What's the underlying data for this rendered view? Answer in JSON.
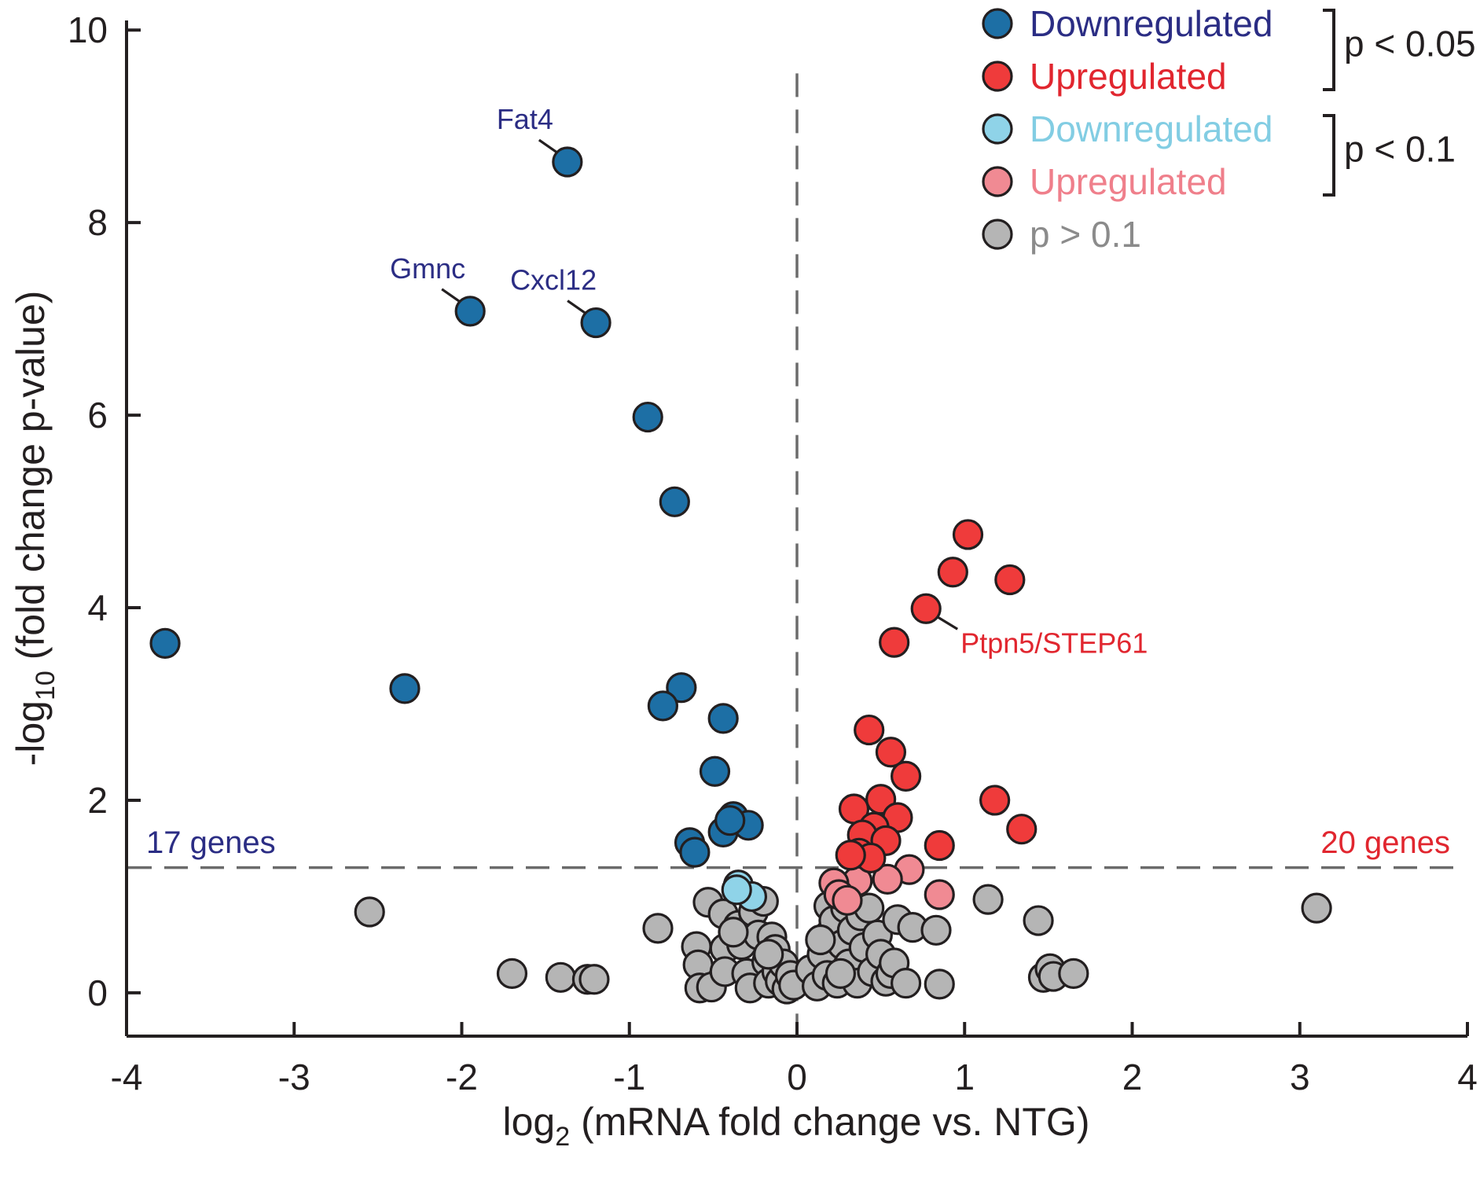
{
  "chart_data": {
    "type": "scatter",
    "title": "",
    "xlabel": {
      "prefix": "log",
      "sub": "2",
      "rest": " (mRNA fold change vs. NTG)"
    },
    "ylabel": {
      "prefix": "-log",
      "sub": "10",
      "rest": " (fold change p-value)"
    },
    "xlim": [
      -4,
      4
    ],
    "ylim": [
      -0.45,
      10.1
    ],
    "xticks": [
      -4,
      -3,
      -2,
      -1,
      0,
      1,
      2,
      3,
      4
    ],
    "yticks": [
      0,
      2,
      4,
      6,
      8,
      10
    ],
    "grid": false,
    "reference_lines": {
      "x": 0,
      "y": 1.3,
      "x_line_top": 9.55
    },
    "colors": {
      "down_sig": "#1d6fa5",
      "up_sig": "#ef3b3b",
      "down_trend": "#8fd3e8",
      "up_trend": "#f08a93",
      "ns": "#b5b5b5",
      "navy_text": "#2b2d84",
      "red_text": "#e1262f",
      "light_blue_text": "#82cde3",
      "pink_text": "#ef7f8b",
      "gray_text": "#8b8b8b"
    },
    "legend": {
      "placement": "top-right",
      "items": [
        {
          "label": "Downregulated",
          "series": "down_sig"
        },
        {
          "label": "Upregulated",
          "series": "up_sig"
        },
        {
          "label": "Downregulated",
          "series": "down_trend"
        },
        {
          "label": "Upregulated",
          "series": "up_trend"
        },
        {
          "label": "p > 0.1",
          "series": "ns"
        }
      ],
      "brackets": [
        {
          "label": "p < 0.05",
          "covers": [
            0,
            1
          ]
        },
        {
          "label": "p < 0.1",
          "covers": [
            2,
            3
          ]
        }
      ]
    },
    "counts": {
      "down": "17 genes",
      "up": "20 genes"
    },
    "annotations": [
      {
        "text": "Fat4",
        "x": -1.37,
        "y": 8.63,
        "color": "navy_text"
      },
      {
        "text": "Gmnc",
        "x": -1.95,
        "y": 7.08,
        "color": "navy_text"
      },
      {
        "text": "Cxcl12",
        "x": -1.2,
        "y": 6.96,
        "color": "navy_text"
      },
      {
        "text": "Ptpn5/STEP61",
        "x": 0.77,
        "y": 3.99,
        "color": "red_text"
      }
    ],
    "series": [
      {
        "name": "Downregulated (p < 0.05)",
        "key": "down_sig",
        "points": [
          [
            -1.37,
            8.63
          ],
          [
            -1.95,
            7.08
          ],
          [
            -1.2,
            6.96
          ],
          [
            -0.89,
            5.98
          ],
          [
            -0.73,
            5.1
          ],
          [
            -3.77,
            3.63
          ],
          [
            -2.34,
            3.16
          ],
          [
            -0.69,
            3.17
          ],
          [
            -0.8,
            2.98
          ],
          [
            -0.44,
            2.85
          ],
          [
            -0.49,
            2.3
          ],
          [
            -0.38,
            1.83
          ],
          [
            -0.29,
            1.74
          ],
          [
            -0.44,
            1.67
          ],
          [
            -0.64,
            1.56
          ],
          [
            -0.61,
            1.46
          ],
          [
            -0.4,
            1.79
          ]
        ]
      },
      {
        "name": "Upregulated (p < 0.05)",
        "key": "up_sig",
        "points": [
          [
            1.02,
            4.76
          ],
          [
            0.93,
            4.37
          ],
          [
            1.27,
            4.29
          ],
          [
            0.77,
            3.99
          ],
          [
            0.58,
            3.64
          ],
          [
            0.43,
            2.73
          ],
          [
            0.56,
            2.5
          ],
          [
            0.65,
            2.25
          ],
          [
            1.18,
            2.0
          ],
          [
            0.5,
            2.01
          ],
          [
            0.34,
            1.91
          ],
          [
            0.6,
            1.82
          ],
          [
            1.34,
            1.7
          ],
          [
            0.46,
            1.72
          ],
          [
            0.39,
            1.64
          ],
          [
            0.53,
            1.58
          ],
          [
            0.85,
            1.53
          ],
          [
            0.37,
            1.45
          ],
          [
            0.44,
            1.4
          ],
          [
            0.32,
            1.43
          ]
        ]
      },
      {
        "name": "Downregulated (p < 0.1)",
        "key": "down_trend",
        "points": [
          [
            -0.35,
            1.12
          ],
          [
            -0.27,
            1.0
          ],
          [
            -0.36,
            1.07
          ]
        ]
      },
      {
        "name": "Upregulated (p < 0.1)",
        "key": "up_trend",
        "points": [
          [
            0.67,
            1.28
          ],
          [
            0.54,
            1.18
          ],
          [
            0.36,
            1.16
          ],
          [
            0.22,
            1.14
          ],
          [
            0.85,
            1.02
          ],
          [
            0.25,
            1.02
          ],
          [
            0.3,
            0.96
          ]
        ]
      },
      {
        "name": "p > 0.1",
        "key": "ns",
        "points": [
          [
            -2.55,
            0.84
          ],
          [
            -1.7,
            0.2
          ],
          [
            -1.41,
            0.16
          ],
          [
            -1.25,
            0.14
          ],
          [
            -1.21,
            0.14
          ],
          [
            -0.83,
            0.67
          ],
          [
            -0.53,
            0.94
          ],
          [
            -0.44,
            0.82
          ],
          [
            -0.6,
            0.48
          ],
          [
            -0.59,
            0.29
          ],
          [
            -0.58,
            0.05
          ],
          [
            -0.51,
            0.06
          ],
          [
            -0.43,
            0.46
          ],
          [
            -0.43,
            0.22
          ],
          [
            -0.35,
            0.7
          ],
          [
            -0.33,
            0.5
          ],
          [
            -0.3,
            0.2
          ],
          [
            -0.28,
            0.05
          ],
          [
            -0.26,
            0.84
          ],
          [
            -0.23,
            0.6
          ],
          [
            -0.2,
            0.95
          ],
          [
            -0.18,
            0.32
          ],
          [
            -0.17,
            0.1
          ],
          [
            -0.15,
            0.58
          ],
          [
            -0.13,
            0.45
          ],
          [
            -0.12,
            0.22
          ],
          [
            -0.1,
            0.12
          ],
          [
            -0.08,
            0.3
          ],
          [
            -0.06,
            0.04
          ],
          [
            -0.04,
            0.18
          ],
          [
            -0.02,
            0.08
          ],
          [
            -0.17,
            0.4
          ],
          [
            0.08,
            0.24
          ],
          [
            0.12,
            0.07
          ],
          [
            0.15,
            0.4
          ],
          [
            0.18,
            0.18
          ],
          [
            0.19,
            0.9
          ],
          [
            0.2,
            0.62
          ],
          [
            0.22,
            0.75
          ],
          [
            0.24,
            0.1
          ],
          [
            0.27,
            0.5
          ],
          [
            0.29,
            0.88
          ],
          [
            0.31,
            0.3
          ],
          [
            0.33,
            0.65
          ],
          [
            0.36,
            0.1
          ],
          [
            0.38,
            0.8
          ],
          [
            0.4,
            0.47
          ],
          [
            0.43,
            0.88
          ],
          [
            0.45,
            0.22
          ],
          [
            0.48,
            0.6
          ],
          [
            0.5,
            0.4
          ],
          [
            0.53,
            0.12
          ],
          [
            0.56,
            0.2
          ],
          [
            0.58,
            0.31
          ],
          [
            0.6,
            0.76
          ],
          [
            0.65,
            0.1
          ],
          [
            0.69,
            0.68
          ],
          [
            0.83,
            0.65
          ],
          [
            0.85,
            0.09
          ],
          [
            1.14,
            0.97
          ],
          [
            1.44,
            0.75
          ],
          [
            1.47,
            0.16
          ],
          [
            1.51,
            0.25
          ],
          [
            1.53,
            0.17
          ],
          [
            1.65,
            0.2
          ],
          [
            3.1,
            0.88
          ],
          [
            0.14,
            0.55
          ],
          [
            0.26,
            0.2
          ],
          [
            -0.38,
            0.63
          ]
        ]
      }
    ]
  }
}
